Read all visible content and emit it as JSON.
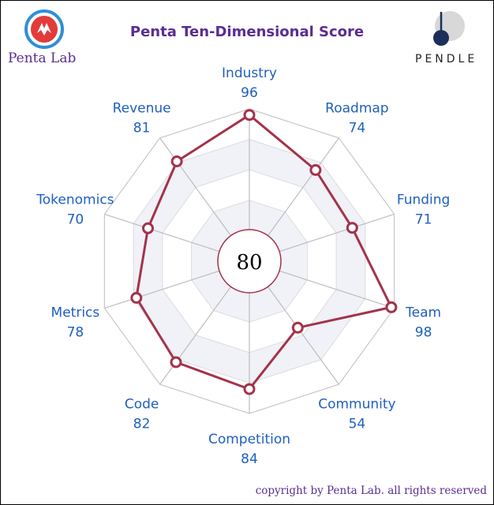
{
  "header": {
    "title": "Penta Ten-Dimensional Score",
    "brand_left": "Penta Lab",
    "brand_right": "PENDLE"
  },
  "footer": {
    "copyright": "copyright by Penta Lab. all rights reserved"
  },
  "colors": {
    "title": "#5a2d91",
    "label": "#1f5fbf",
    "series": "#a3334a",
    "grid": "#bdbdbd",
    "band": "#f1f1f8"
  },
  "icons": {
    "left": "penta-lab-logo-icon",
    "right": "pendle-logo-icon"
  },
  "chart_data": {
    "type": "radar",
    "title": "Penta Ten-Dimensional Score",
    "center_score": "80",
    "categories": [
      "Industry",
      "Roadmap",
      "Funding",
      "Team",
      "Community",
      "Competition",
      "Code",
      "Metrics",
      "Tokenomics",
      "Revenue"
    ],
    "series": [
      {
        "values": [
          96,
          74,
          71,
          98,
          54,
          84,
          82,
          78,
          70,
          81
        ]
      }
    ],
    "value_labels": [
      "96",
      "74",
      "71",
      "98",
      "54",
      "84",
      "82",
      "78",
      "70",
      "81"
    ],
    "range": [
      0,
      100
    ],
    "grid": true
  }
}
